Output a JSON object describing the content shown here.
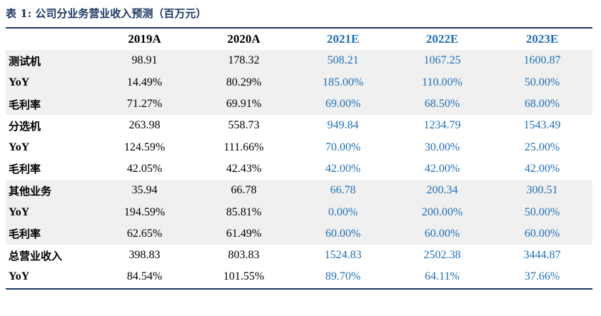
{
  "caption": "表 1:  公司分业务营业收入预测（百万元）",
  "header": {
    "label": "",
    "years": [
      "2019A",
      "2020A",
      "2021E",
      "2022E",
      "2023E"
    ]
  },
  "rows": [
    {
      "label": "测试机",
      "values": [
        "98.91",
        "178.32",
        "508.21",
        "1067.25",
        "1600.87"
      ]
    },
    {
      "label": "YoY",
      "values": [
        "14.49%",
        "80.29%",
        "185.00%",
        "110.00%",
        "50.00%"
      ]
    },
    {
      "label": "毛利率",
      "values": [
        "71.27%",
        "69.91%",
        "69.00%",
        "68.50%",
        "68.00%"
      ]
    },
    {
      "label": "分选机",
      "values": [
        "263.98",
        "558.73",
        "949.84",
        "1234.79",
        "1543.49"
      ]
    },
    {
      "label": "YoY",
      "values": [
        "124.59%",
        "111.66%",
        "70.00%",
        "30.00%",
        "25.00%"
      ]
    },
    {
      "label": "毛利率",
      "values": [
        "42.05%",
        "42.43%",
        "42.00%",
        "42.00%",
        "42.00%"
      ]
    },
    {
      "label": "其他业务",
      "values": [
        "35.94",
        "66.78",
        "66.78",
        "200.34",
        "300.51"
      ]
    },
    {
      "label": "YoY",
      "values": [
        "194.59%",
        "85.81%",
        "0.00%",
        "200.00%",
        "50.00%"
      ]
    },
    {
      "label": "毛利率",
      "values": [
        "62.65%",
        "61.49%",
        "60.00%",
        "60.00%",
        "60.00%"
      ]
    },
    {
      "label": "总营业收入",
      "values": [
        "398.83",
        "803.83",
        "1524.83",
        "2502.38",
        "3444.87"
      ]
    },
    {
      "label": "YoY",
      "values": [
        "84.54%",
        "101.55%",
        "89.70%",
        "64.11%",
        "37.66%"
      ]
    }
  ],
  "colors": {
    "heading": "#1f3864",
    "projection_text": "#1f6fb5",
    "row_shade": "#f0f0f0"
  }
}
